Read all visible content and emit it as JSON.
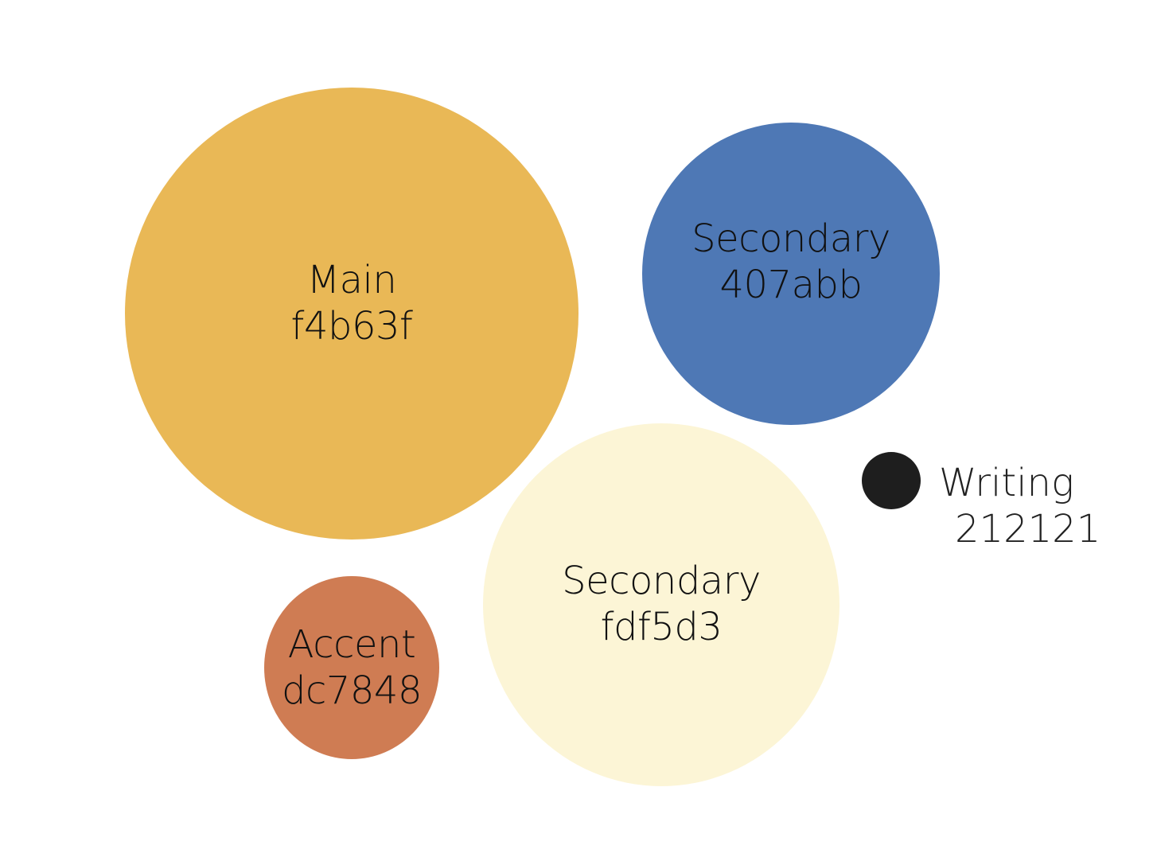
{
  "palette": [
    {
      "id": "main",
      "name": "Main",
      "code": "f4b63f",
      "color": "#e9b856"
    },
    {
      "id": "sec-blue",
      "name": "Secondary",
      "code": "407abb",
      "color": "#4e78b5"
    },
    {
      "id": "sec-cream",
      "name": "Secondary",
      "code": "fdf5d3",
      "color": "#fcf5d6"
    },
    {
      "id": "accent",
      "name": "Accent",
      "code": "dc7848",
      "color": "#cf7c53"
    },
    {
      "id": "writing",
      "name": "Writing",
      "code": "212121",
      "color": "#1e1e1e"
    }
  ]
}
